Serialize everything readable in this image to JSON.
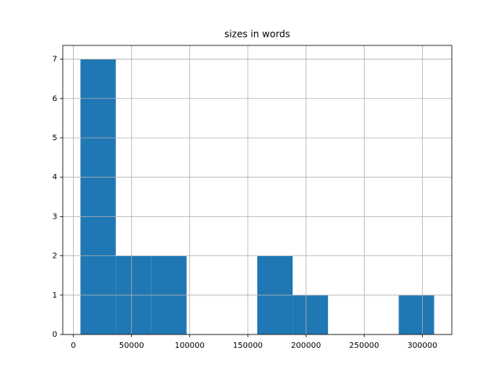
{
  "chart_data": {
    "type": "histogram",
    "title": "sizes in words",
    "bins": [
      6081,
      36486,
      66892,
      97297,
      127702,
      158108,
      188513,
      218918,
      249324,
      279729,
      310135
    ],
    "values": [
      7,
      2,
      2,
      0,
      0,
      2,
      1,
      0,
      0,
      1
    ],
    "color": "#1f77b4",
    "xlim": [
      -9122,
      325338
    ],
    "xticks": [
      0,
      50000,
      100000,
      150000,
      200000,
      250000,
      300000
    ],
    "ylim": [
      0,
      7.35
    ],
    "yticks": [
      0,
      1,
      2,
      3,
      4,
      5,
      6,
      7
    ],
    "grid": true
  }
}
